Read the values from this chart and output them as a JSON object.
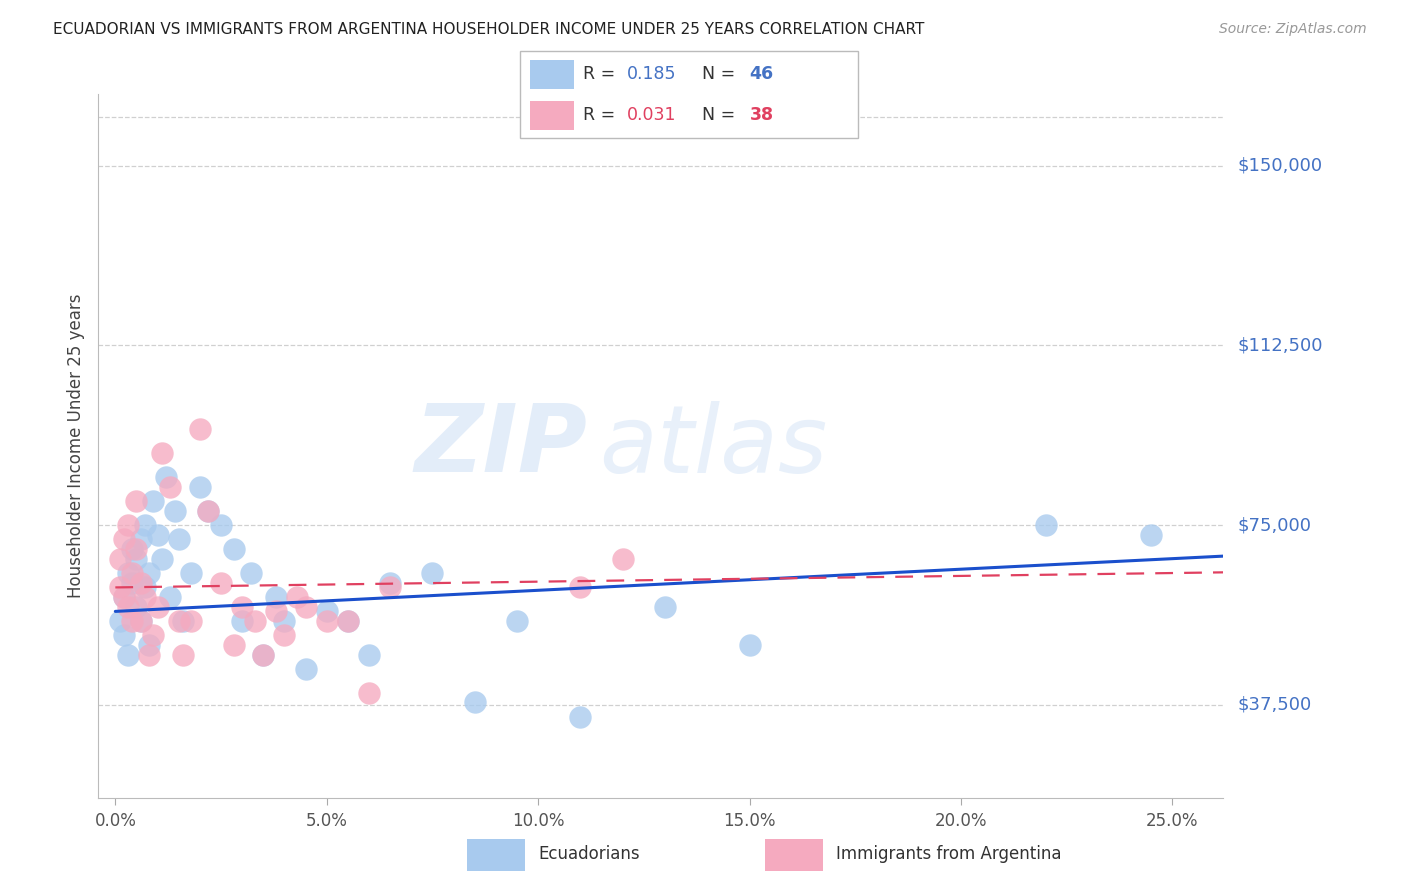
{
  "title": "ECUADORIAN VS IMMIGRANTS FROM ARGENTINA HOUSEHOLDER INCOME UNDER 25 YEARS CORRELATION CHART",
  "source": "Source: ZipAtlas.com",
  "ylabel": "Householder Income Under 25 years",
  "ytick_labels": [
    "$37,500",
    "$75,000",
    "$112,500",
    "$150,000"
  ],
  "ytick_vals": [
    37500,
    75000,
    112500,
    150000
  ],
  "ylim": [
    18000,
    165000
  ],
  "xlim": [
    -0.004,
    0.262
  ],
  "blue_R": 0.185,
  "blue_N": 46,
  "pink_R": 0.031,
  "pink_N": 38,
  "blue_color": "#A8CAEE",
  "pink_color": "#F5AABF",
  "blue_line_color": "#1A4FCC",
  "pink_line_color": "#E04060",
  "watermark_zip": "ZIP",
  "watermark_atlas": "atlas",
  "ecu_x": [
    0.001,
    0.002,
    0.002,
    0.003,
    0.003,
    0.004,
    0.004,
    0.005,
    0.005,
    0.006,
    0.006,
    0.007,
    0.007,
    0.008,
    0.008,
    0.009,
    0.01,
    0.011,
    0.012,
    0.013,
    0.014,
    0.015,
    0.016,
    0.018,
    0.02,
    0.022,
    0.025,
    0.028,
    0.03,
    0.032,
    0.035,
    0.038,
    0.04,
    0.045,
    0.05,
    0.055,
    0.06,
    0.065,
    0.075,
    0.085,
    0.095,
    0.11,
    0.13,
    0.15,
    0.22,
    0.245
  ],
  "ecu_y": [
    55000,
    60000,
    52000,
    65000,
    48000,
    63000,
    70000,
    58000,
    68000,
    72000,
    55000,
    75000,
    62000,
    65000,
    50000,
    80000,
    73000,
    68000,
    85000,
    60000,
    78000,
    72000,
    55000,
    65000,
    83000,
    78000,
    75000,
    70000,
    55000,
    65000,
    48000,
    60000,
    55000,
    45000,
    57000,
    55000,
    48000,
    63000,
    65000,
    38000,
    55000,
    35000,
    58000,
    50000,
    75000,
    73000
  ],
  "arg_x": [
    0.001,
    0.001,
    0.002,
    0.002,
    0.003,
    0.003,
    0.004,
    0.004,
    0.005,
    0.005,
    0.006,
    0.006,
    0.007,
    0.008,
    0.009,
    0.01,
    0.011,
    0.013,
    0.015,
    0.016,
    0.018,
    0.02,
    0.022,
    0.025,
    0.028,
    0.03,
    0.033,
    0.035,
    0.038,
    0.04,
    0.043,
    0.045,
    0.05,
    0.055,
    0.06,
    0.065,
    0.11,
    0.12
  ],
  "arg_y": [
    62000,
    68000,
    60000,
    72000,
    75000,
    58000,
    65000,
    55000,
    70000,
    80000,
    63000,
    55000,
    60000,
    48000,
    52000,
    58000,
    90000,
    83000,
    55000,
    48000,
    55000,
    95000,
    78000,
    63000,
    50000,
    58000,
    55000,
    48000,
    57000,
    52000,
    60000,
    58000,
    55000,
    55000,
    40000,
    62000,
    62000,
    68000
  ]
}
